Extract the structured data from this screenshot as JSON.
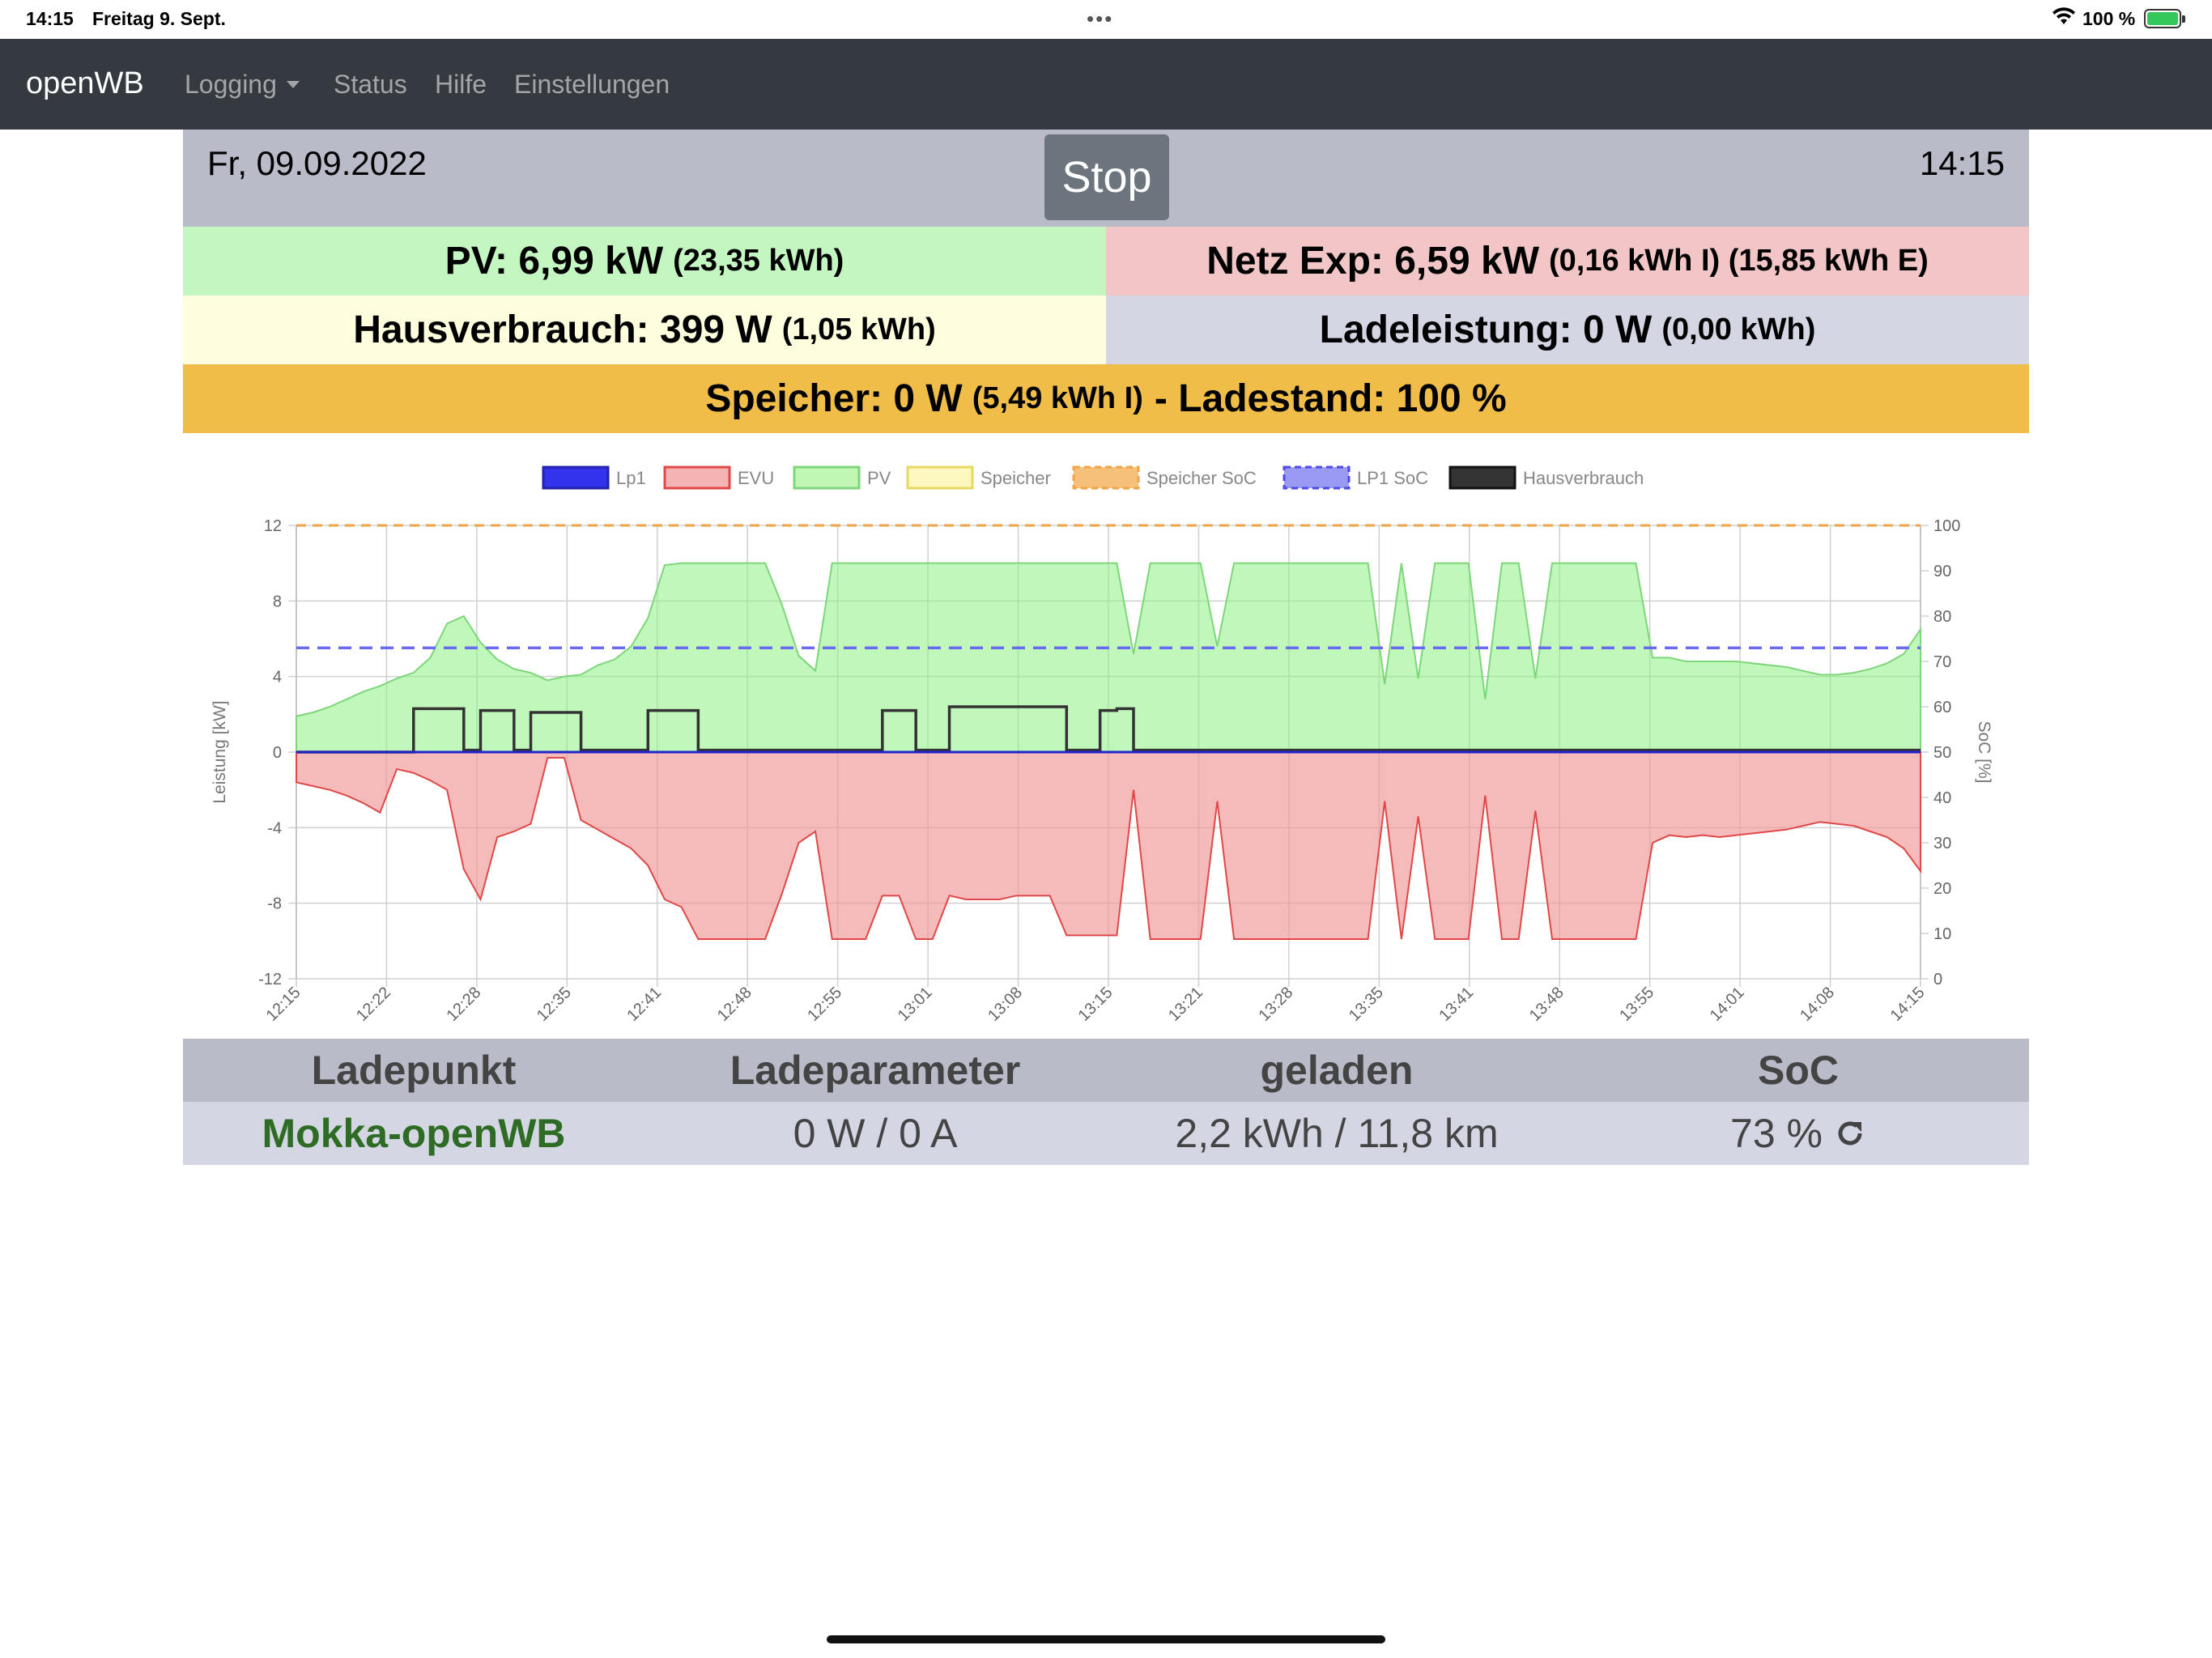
{
  "status_bar": {
    "time": "14:15",
    "date": "Freitag 9. Sept.",
    "battery": "100 %"
  },
  "nav": {
    "brand": "openWB",
    "items": [
      "Logging",
      "Status",
      "Hilfe",
      "Einstellungen"
    ]
  },
  "header": {
    "date": "Fr, 09.09.2022",
    "stop_label": "Stop",
    "clock": "14:15"
  },
  "tiles": {
    "pv": {
      "label": "PV: 6,99 kW",
      "detail": "(23,35 kWh)",
      "color": "#c3f6c1"
    },
    "netz": {
      "label": "Netz Exp: 6,59 kW",
      "detail": "(0,16 kWh I) (15,85 kWh E)",
      "color": "#f2c6c6"
    },
    "haus": {
      "label": "Hausverbrauch: 399 W",
      "detail": "(1,05 kWh)",
      "color": "#fefede"
    },
    "lade": {
      "label": "Ladeleistung: 0 W",
      "detail": "(0,00 kWh)",
      "color": "#d4d7e3"
    },
    "speicher": {
      "label": "Speicher: 0 W",
      "detail": "(5,49 kWh I)",
      "suffix": "- Ladestand: 100 %",
      "color": "#f0be48"
    }
  },
  "chart_data": {
    "type": "area",
    "legend_position": "top",
    "series": [
      {
        "name": "Lp1",
        "color": "#3333ee"
      },
      {
        "name": "EVU",
        "color": "#f4b4b4"
      },
      {
        "name": "PV",
        "color": "#bff8b4"
      },
      {
        "name": "Speicher",
        "color": "#fdf7c0"
      },
      {
        "name": "Speicher SoC",
        "color": "#f1a346"
      },
      {
        "name": "LP1 SoC",
        "color": "#6a6af0"
      },
      {
        "name": "Hausverbrauch",
        "color": "#333333"
      }
    ],
    "y_left": {
      "label": "Leistung [kW]",
      "ticks": [
        "12",
        "8",
        "4",
        "0",
        "-4",
        "-8",
        "-12"
      ],
      "range": [
        -12,
        12
      ]
    },
    "y_right": {
      "label": "SoC [%]",
      "ticks": [
        "100",
        "90",
        "80",
        "70",
        "60",
        "50",
        "40",
        "30",
        "20",
        "10",
        "0"
      ],
      "range": [
        0,
        100
      ]
    },
    "x_ticks": [
      "12:15",
      "12:22",
      "12:28",
      "12:35",
      "12:41",
      "12:48",
      "12:55",
      "13:01",
      "13:08",
      "13:15",
      "13:21",
      "13:28",
      "13:35",
      "13:41",
      "13:48",
      "13:55",
      "14:01",
      "14:08",
      "14:15"
    ],
    "pv_kw": [
      1.9,
      2.1,
      2.4,
      2.8,
      3.2,
      3.5,
      3.9,
      4.2,
      5.0,
      6.8,
      7.2,
      5.8,
      4.9,
      4.4,
      4.2,
      3.8,
      4.0,
      4.1,
      4.6,
      4.9,
      5.6,
      7.1,
      9.9,
      10.0,
      10.0,
      10.0,
      10.0,
      10.0,
      10.0,
      7.8,
      5.1,
      4.3,
      10.0,
      10.0,
      10.0,
      10.0,
      10.0,
      10.0,
      10.0,
      10.0,
      10.0,
      10.0,
      10.0,
      10.0,
      10.0,
      10.0,
      10.0,
      10.0,
      10.0,
      10.0,
      5.2,
      10.0,
      10.0,
      10.0,
      10.0,
      5.6,
      10.0,
      10.0,
      10.0,
      10.0,
      10.0,
      10.0,
      10.0,
      10.0,
      10.0,
      3.6,
      10.0,
      3.9,
      10.0,
      10.0,
      10.0,
      2.8,
      10.0,
      10.0,
      3.9,
      10.0,
      10.0,
      10.0,
      10.0,
      10.0,
      10.0,
      5.0,
      5.0,
      4.8,
      4.8,
      4.8,
      4.8,
      4.7,
      4.6,
      4.5,
      4.3,
      4.1,
      4.1,
      4.2,
      4.4,
      4.7,
      5.2,
      6.5
    ],
    "evu_kw": [
      -1.6,
      -1.8,
      -2.0,
      -2.3,
      -2.7,
      -3.2,
      -0.9,
      -1.1,
      -1.5,
      -2.0,
      -6.2,
      -7.8,
      -4.5,
      -4.2,
      -3.8,
      -0.3,
      -0.3,
      -3.6,
      -4.1,
      -4.6,
      -5.1,
      -6.0,
      -7.8,
      -8.2,
      -9.9,
      -9.9,
      -9.9,
      -9.9,
      -9.9,
      -7.5,
      -4.8,
      -4.2,
      -9.9,
      -9.9,
      -9.9,
      -7.6,
      -7.6,
      -9.9,
      -9.9,
      -7.6,
      -7.8,
      -7.8,
      -7.8,
      -7.6,
      -7.6,
      -7.6,
      -9.7,
      -9.7,
      -9.7,
      -9.7,
      -2.0,
      -9.9,
      -9.9,
      -9.9,
      -9.9,
      -2.6,
      -9.9,
      -9.9,
      -9.9,
      -9.9,
      -9.9,
      -9.9,
      -9.9,
      -9.9,
      -9.9,
      -2.6,
      -9.9,
      -3.4,
      -9.9,
      -9.9,
      -9.9,
      -2.3,
      -9.9,
      -9.9,
      -3.1,
      -9.9,
      -9.9,
      -9.9,
      -9.9,
      -9.9,
      -9.9,
      -4.8,
      -4.4,
      -4.5,
      -4.4,
      -4.5,
      -4.4,
      -4.3,
      -4.2,
      -4.1,
      -3.9,
      -3.7,
      -3.8,
      -3.9,
      -4.2,
      -4.5,
      -5.1,
      -6.3
    ],
    "haus_kw": [
      0.0,
      0.0,
      0.0,
      0.0,
      0.0,
      0.0,
      0.0,
      2.3,
      2.3,
      2.3,
      0.1,
      2.2,
      2.2,
      0.1,
      2.1,
      2.1,
      2.1,
      0.1,
      0.1,
      0.1,
      0.1,
      2.2,
      2.2,
      2.2,
      0.1,
      0.1,
      0.1,
      0.1,
      0.1,
      0.1,
      0.1,
      0.1,
      0.1,
      0.1,
      0.1,
      2.2,
      2.2,
      0.1,
      0.1,
      2.4,
      2.4,
      2.4,
      2.4,
      2.4,
      2.4,
      2.4,
      0.1,
      0.1,
      2.2,
      2.3,
      0.1,
      0.1,
      0.1,
      0.1,
      0.1,
      0.1,
      0.1,
      0.1,
      0.1,
      0.1,
      0.1,
      0.1,
      0.1,
      0.1,
      0.1,
      0.1,
      0.1,
      0.1,
      0.1,
      0.1,
      0.1,
      0.1,
      0.1,
      0.1,
      0.1,
      0.1,
      0.1,
      0.1,
      0.1,
      0.1,
      0.1,
      0.1,
      0.1,
      0.1,
      0.1,
      0.1,
      0.1,
      0.1,
      0.1,
      0.1,
      0.1,
      0.1,
      0.1,
      0.1,
      0.1,
      0.1,
      0.1,
      0.1
    ],
    "lp1_kw": 0,
    "lp1_soc_pct": 73,
    "speicher_soc_pct": 100
  },
  "table": {
    "headers": [
      "Ladepunkt",
      "Ladeparameter",
      "geladen",
      "SoC"
    ],
    "row": {
      "name": "Mokka-openWB",
      "param": "0 W / 0 A",
      "geladen": "2,2 kWh / 11,8 km",
      "soc": "73 %"
    }
  }
}
